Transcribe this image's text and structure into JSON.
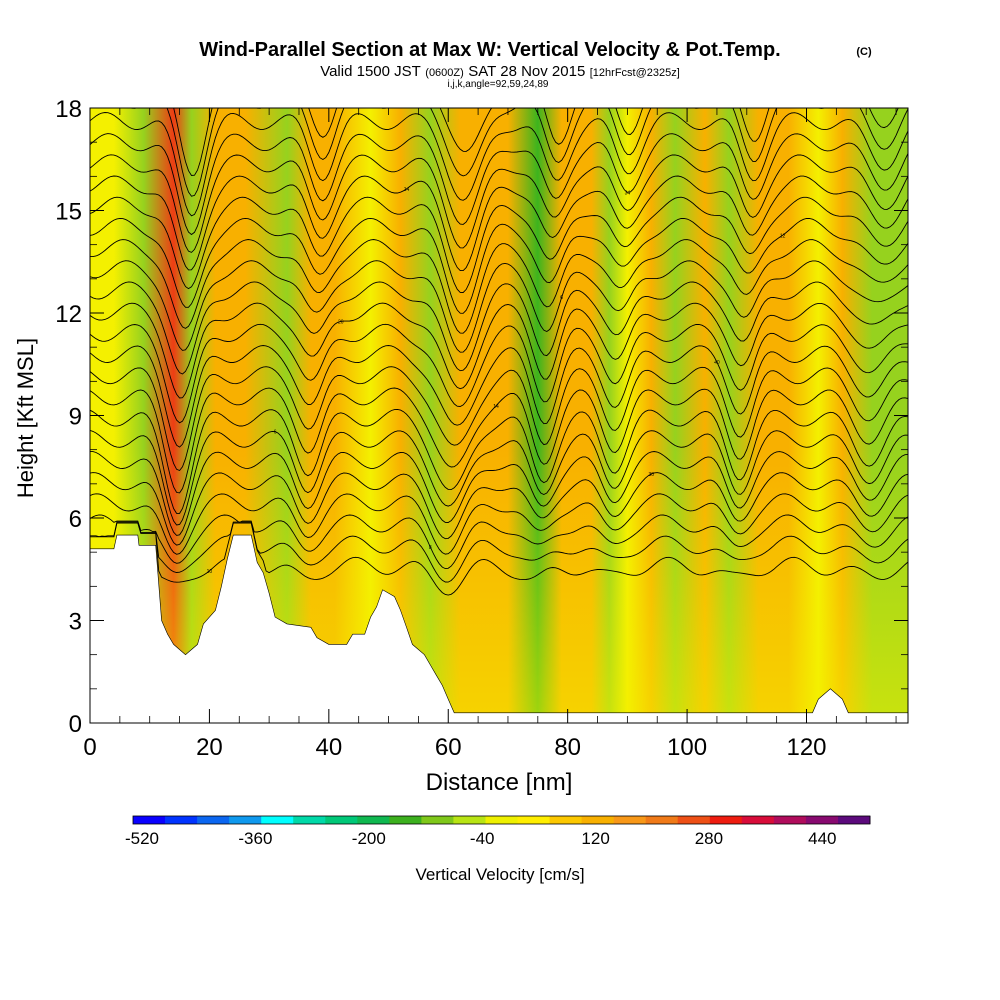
{
  "chart_data": {
    "type": "heatmap",
    "title": "Wind-Parallel Section at Max W: Vertical Velocity & Pot.Temp.",
    "title_mark": "(C)",
    "subtitle": {
      "valid": "Valid 1500 JST",
      "utc": "(0600Z)",
      "date": "SAT 28 Nov 2015",
      "fcst": "[12hrFcst@2325z]"
    },
    "indices": "i,j,k,angle=92,59,24,89",
    "xlabel": "Distance [nm]",
    "ylabel": "Height [Kft MSL]",
    "xlim": [
      0,
      137
    ],
    "ylim": [
      0,
      18
    ],
    "x_ticks": [
      "0",
      "20",
      "40",
      "60",
      "80",
      "100",
      "120"
    ],
    "y_ticks": [
      "0",
      "3",
      "6",
      "9",
      "12",
      "15",
      "18"
    ],
    "colorbar": {
      "label": "Vertical Velocity [cm/s]",
      "tick_labels": [
        "-520",
        "-360",
        "-200",
        "-40",
        "120",
        "280",
        "440"
      ],
      "colors": [
        "#0a00ff",
        "#0033ff",
        "#0b66f0",
        "#0f99ee",
        "#00ffff",
        "#00d9a8",
        "#00c878",
        "#10b850",
        "#3cb01e",
        "#7fc81a",
        "#b8e414",
        "#eef000",
        "#ffee00",
        "#fcc800",
        "#f8b000",
        "#f89818",
        "#f07a18",
        "#ee5016",
        "#ee1c10",
        "#d80c3a",
        "#b00c5c",
        "#880a70",
        "#5c0a7c"
      ]
    },
    "background_color": "#f4f000",
    "upward_color": "#f8b000",
    "strong_upward_color": "#ee3c14",
    "downward_color": "#96d21e",
    "strong_downward_color": "#3cb41e",
    "vertical_velocity_bands": [
      {
        "x": 4,
        "w": 30
      },
      {
        "x": 9,
        "w": -150
      },
      {
        "x": 14,
        "w": 290
      },
      {
        "x": 17,
        "w": -130
      },
      {
        "x": 21,
        "w": 60
      },
      {
        "x": 26,
        "w": 130
      },
      {
        "x": 33,
        "w": -140
      },
      {
        "x": 37,
        "w": 80
      },
      {
        "x": 41,
        "w": 60
      },
      {
        "x": 47,
        "w": 40
      },
      {
        "x": 52,
        "w": 90
      },
      {
        "x": 57,
        "w": -120
      },
      {
        "x": 62,
        "w": 90
      },
      {
        "x": 66,
        "w": 60
      },
      {
        "x": 70,
        "w": 100
      },
      {
        "x": 75,
        "w": -190
      },
      {
        "x": 79,
        "w": 50
      },
      {
        "x": 84,
        "w": 90
      },
      {
        "x": 87,
        "w": -130
      },
      {
        "x": 90,
        "w": 40
      },
      {
        "x": 94,
        "w": 80
      },
      {
        "x": 98,
        "w": -100
      },
      {
        "x": 103,
        "w": 130
      },
      {
        "x": 107,
        "w": -90
      },
      {
        "x": 112,
        "w": 50
      },
      {
        "x": 117,
        "w": 70
      },
      {
        "x": 122,
        "w": -40
      },
      {
        "x": 126,
        "w": 60
      },
      {
        "x": 131,
        "w": -60
      }
    ],
    "terrain_profile": [
      [
        0,
        5.1
      ],
      [
        4,
        5.1
      ],
      [
        4.5,
        5.5
      ],
      [
        8,
        5.5
      ],
      [
        8.2,
        5.2
      ],
      [
        11,
        5.2
      ],
      [
        12,
        3.0
      ],
      [
        13,
        2.6
      ],
      [
        14,
        2.3
      ],
      [
        16,
        2.0
      ],
      [
        18,
        2.3
      ],
      [
        19,
        2.9
      ],
      [
        21,
        3.3
      ],
      [
        22,
        4.0
      ],
      [
        23,
        4.8
      ],
      [
        24,
        5.5
      ],
      [
        27,
        5.5
      ],
      [
        28,
        4.7
      ],
      [
        29,
        4.4
      ],
      [
        30,
        3.8
      ],
      [
        31,
        3.1
      ],
      [
        33,
        2.9
      ],
      [
        37,
        2.8
      ],
      [
        38,
        2.5
      ],
      [
        40,
        2.3
      ],
      [
        43,
        2.3
      ],
      [
        44,
        2.6
      ],
      [
        46,
        2.6
      ],
      [
        47,
        3.1
      ],
      [
        48,
        3.4
      ],
      [
        49,
        3.9
      ],
      [
        51,
        3.7
      ],
      [
        52,
        3.3
      ],
      [
        53,
        2.8
      ],
      [
        54,
        2.3
      ],
      [
        56,
        2.0
      ],
      [
        57,
        1.7
      ],
      [
        58,
        1.4
      ],
      [
        59,
        1.1
      ],
      [
        60,
        0.7
      ],
      [
        61,
        0.3
      ],
      [
        121,
        0.3
      ],
      [
        122,
        0.7
      ],
      [
        124,
        1.0
      ],
      [
        126,
        0.7
      ],
      [
        127,
        0.3
      ],
      [
        137,
        0.3
      ]
    ],
    "theta_contour_labels": [
      "10",
      "8",
      "30",
      "6",
      "14",
      "40",
      "20",
      "6",
      "12",
      "14",
      "34",
      "16",
      "12",
      "20",
      "30",
      "18",
      "14",
      "6",
      "14",
      "12",
      "10",
      "14",
      "14",
      "10",
      "36",
      "34",
      "10",
      "34",
      "30",
      "20",
      "10",
      "28",
      "12",
      "14"
    ]
  }
}
